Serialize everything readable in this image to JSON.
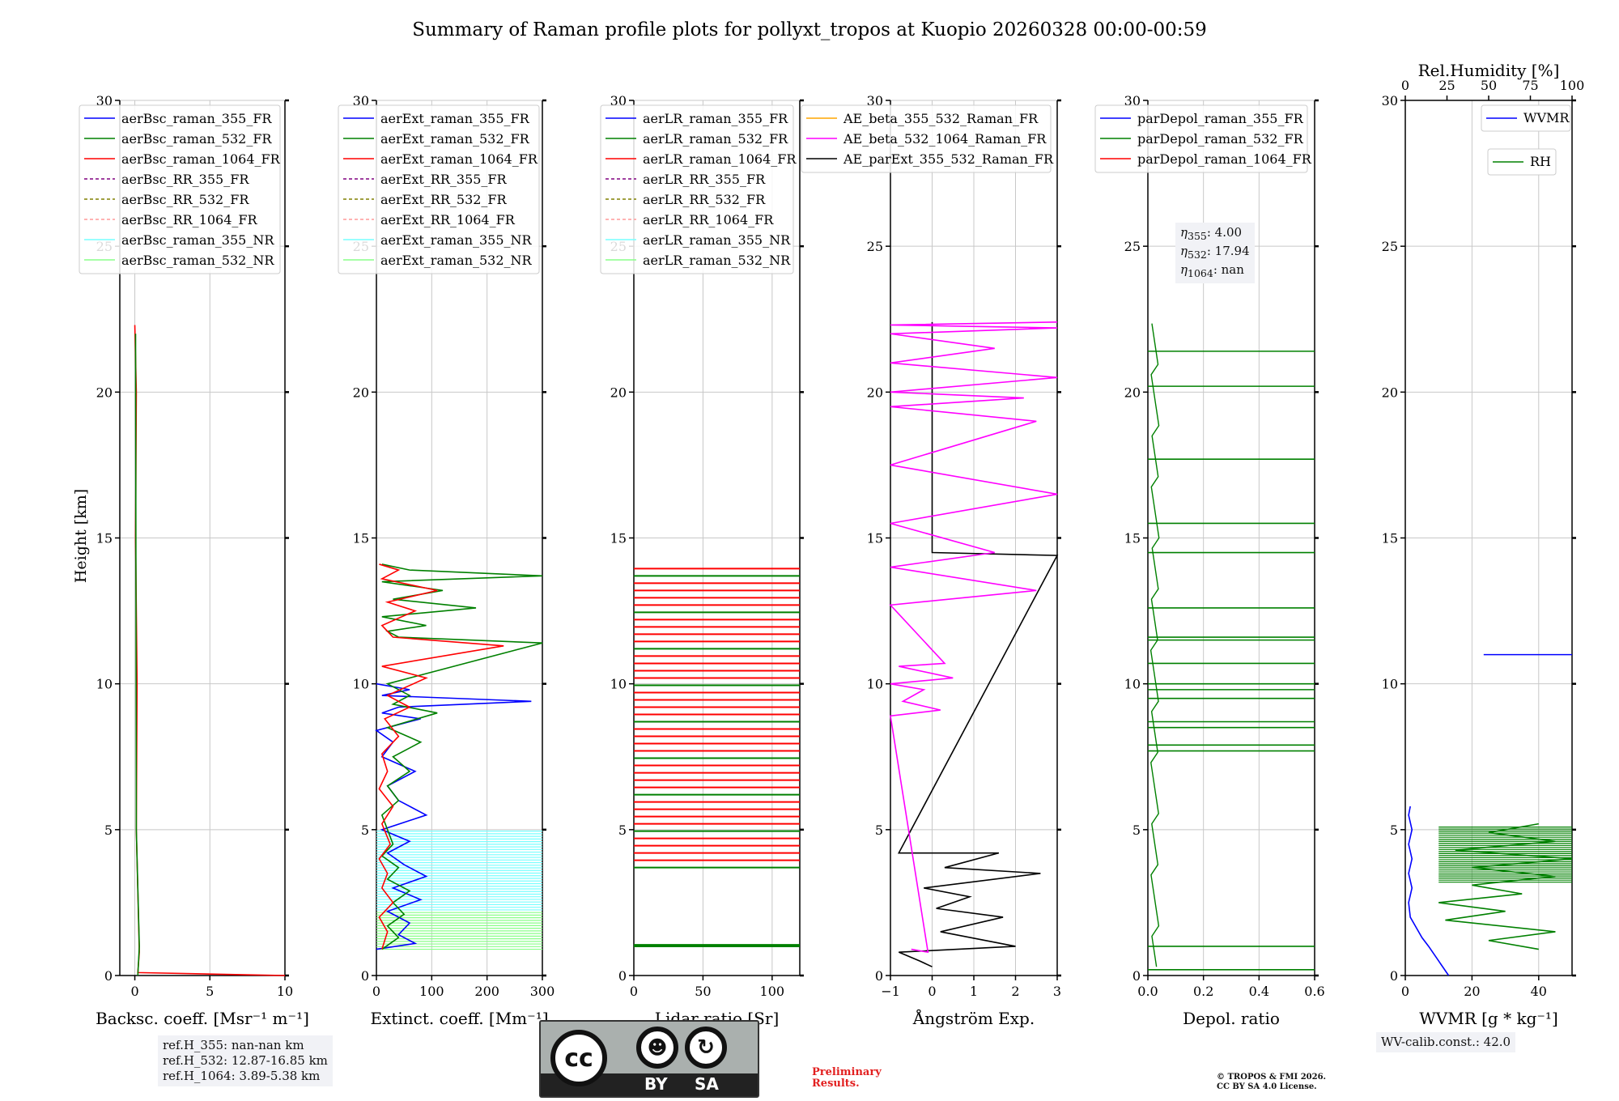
{
  "title": "Summary of Raman profile plots for pollyxt_tropos at Kuopio 20260328 00:00-00:59",
  "ylabel": "Height [km]",
  "colors": {
    "blue": "#0000ff",
    "green": "#008000",
    "red": "#ff0000",
    "purple": "#800080",
    "olive": "#808000",
    "salmon": "#ff9999",
    "cyan": "#77ffff",
    "lightgreen": "#88ff88",
    "orange": "#ffa500",
    "magenta": "#ff00ff",
    "black": "#000000"
  },
  "chart_data": [
    {
      "type": "line",
      "xlabel": "Backsc. coeff. [Msr⁻¹ m⁻¹]",
      "xlim": [
        -1,
        10
      ],
      "xticks": [
        "0",
        "5",
        "10"
      ],
      "ylim": [
        0,
        30
      ],
      "yticks": [
        "0",
        "5",
        "10",
        "15",
        "20",
        "25",
        "30"
      ],
      "legend": [
        "aerBsc_raman_355_FR",
        "aerBsc_raman_532_FR",
        "aerBsc_raman_1064_FR",
        "aerBsc_RR_355_FR",
        "aerBsc_RR_532_FR",
        "aerBsc_RR_1064_FR",
        "aerBsc_raman_355_NR",
        "aerBsc_raman_532_NR"
      ],
      "series": [
        {
          "name": "aerBsc_raman_1064_FR",
          "x": [
            10,
            0.2,
            0.3,
            0.1,
            0.15,
            0.05,
            0.1,
            0
          ],
          "y": [
            0,
            0.1,
            0.8,
            5,
            10,
            15,
            20,
            22.3
          ]
        },
        {
          "name": "aerBsc_raman_532_FR",
          "x": [
            0.2,
            0.3,
            0.1,
            0.05
          ],
          "y": [
            0,
            1,
            5,
            22
          ]
        }
      ]
    },
    {
      "type": "line",
      "xlabel": "Extinct. coeff. [Mm⁻¹]",
      "xlim": [
        0,
        300
      ],
      "xticks": [
        "0",
        "100",
        "200",
        "300"
      ],
      "ylim": [
        0,
        30
      ],
      "yticks": [
        "0",
        "5",
        "10",
        "15",
        "20",
        "25",
        "30"
      ],
      "legend": [
        "aerExt_raman_355_FR",
        "aerExt_raman_532_FR",
        "aerExt_raman_1064_FR",
        "aerExt_RR_355_FR",
        "aerExt_RR_532_FR",
        "aerExt_RR_1064_FR",
        "aerExt_raman_355_NR",
        "aerExt_raman_532_NR"
      ],
      "series": [
        {
          "name": "aerExt_raman_355_FR",
          "x": [
            0,
            70,
            40,
            60,
            20,
            80,
            30,
            90,
            50,
            20,
            60,
            10,
            90,
            40,
            20,
            70,
            10,
            30,
            0,
            80,
            10,
            40,
            280,
            10,
            60,
            0
          ],
          "y": [
            0.9,
            1.1,
            1.4,
            1.8,
            2.2,
            2.6,
            3.0,
            3.4,
            3.8,
            4.2,
            4.6,
            5.0,
            5.5,
            6.0,
            6.5,
            7.0,
            7.5,
            8.0,
            8.4,
            8.8,
            9.0,
            9.2,
            9.4,
            9.6,
            9.8,
            10.0
          ]
        },
        {
          "name": "aerExt_raman_532_FR",
          "x": [
            10,
            40,
            20,
            50,
            30,
            60,
            20,
            40,
            10,
            30,
            10,
            40,
            20,
            60,
            30,
            80,
            20,
            110,
            30,
            60,
            20,
            300,
            40,
            20,
            90,
            10,
            180,
            30,
            120,
            10,
            300,
            60,
            10
          ],
          "y": [
            0.9,
            1.3,
            1.7,
            2.1,
            2.5,
            2.9,
            3.3,
            3.7,
            4.1,
            4.5,
            5.5,
            6.0,
            6.5,
            7.0,
            7.5,
            8.0,
            8.5,
            9.0,
            9.3,
            9.6,
            10.0,
            11.4,
            11.6,
            11.8,
            12.0,
            12.3,
            12.6,
            12.9,
            13.2,
            13.5,
            13.7,
            13.9,
            14.1
          ]
        },
        {
          "name": "aerExt_raman_1064_FR",
          "x": [
            10,
            20,
            5,
            30,
            10,
            20,
            5,
            25,
            10,
            30,
            5,
            20,
            10,
            40,
            15,
            60,
            20,
            90,
            10,
            230,
            30,
            10,
            70,
            20,
            110,
            10,
            40,
            5
          ],
          "y": [
            0.9,
            1.5,
            2.0,
            2.5,
            3.0,
            3.5,
            4.0,
            4.5,
            5.2,
            5.8,
            6.4,
            7.0,
            7.6,
            8.2,
            8.8,
            9.2,
            9.6,
            10.2,
            10.6,
            11.3,
            11.6,
            12.0,
            12.5,
            12.8,
            13.2,
            13.6,
            13.9,
            14.1
          ]
        }
      ]
    },
    {
      "type": "line",
      "xlabel": "Lidar ratio [Sr]",
      "xlim": [
        0,
        120
      ],
      "xticks": [
        "0",
        "50",
        "100"
      ],
      "ylim": [
        0,
        30
      ],
      "yticks": [
        "0",
        "5",
        "10",
        "15",
        "20",
        "25",
        "30"
      ],
      "legend": [
        "aerLR_raman_355_FR",
        "aerLR_raman_532_FR",
        "aerLR_raman_1064_FR",
        "aerLR_RR_355_FR",
        "aerLR_RR_532_FR",
        "aerLR_RR_1064_FR",
        "aerLR_raman_355_NR",
        "aerLR_raman_532_NR"
      ],
      "series": []
    },
    {
      "type": "line",
      "xlabel": "Ångström Exp.",
      "xlim": [
        -1,
        3
      ],
      "xticks": [
        "−1",
        "0",
        "1",
        "2",
        "3"
      ],
      "ylim": [
        0,
        30
      ],
      "yticks": [
        "0",
        "5",
        "10",
        "15",
        "20",
        "25",
        "30"
      ],
      "legend": [
        "AE_beta_355_532_Raman_FR",
        "AE_beta_532_1064_Raman_FR",
        "AE_parExt_355_532_Raman_FR"
      ],
      "series": [
        {
          "name": "AE_parExt_355_532_Raman_FR",
          "x": [
            0,
            -0.3,
            -0.8,
            2,
            0.2,
            1.7,
            0.1,
            0.9,
            -0.2,
            2.6,
            0.3,
            1.6,
            -0.8,
            3,
            0,
            0
          ],
          "y": [
            0.3,
            0.5,
            0.8,
            1,
            1.5,
            2,
            2.3,
            2.7,
            3.0,
            3.5,
            3.7,
            4.2,
            4.2,
            14.4,
            14.5,
            22.4
          ]
        },
        {
          "name": "AE_beta_532_1064_Raman_FR",
          "x": [
            -0.5,
            -0.1,
            -1,
            0.2,
            -0.7,
            -0.2,
            -1,
            0.5,
            -0.8,
            0.3,
            -1,
            2.5,
            -1,
            1.5,
            -1,
            3,
            -1,
            2.5,
            -1,
            2.2,
            -1,
            3,
            -1,
            1.5,
            -1,
            3,
            -1,
            3
          ],
          "y": [
            0.9,
            0.8,
            8.9,
            9.1,
            9.4,
            9.8,
            10.0,
            10.2,
            10.6,
            10.7,
            12.7,
            13.2,
            14.0,
            14.5,
            15.5,
            16.5,
            17.5,
            19.0,
            19.5,
            19.8,
            20.0,
            20.5,
            21.0,
            21.5,
            22.0,
            22.2,
            22.3,
            22.4
          ]
        }
      ]
    },
    {
      "type": "line",
      "xlabel": "Depol. ratio",
      "xlim": [
        0,
        0.6
      ],
      "xticks": [
        "0.0",
        "0.2",
        "0.4",
        "0.6"
      ],
      "ylim": [
        0,
        30
      ],
      "yticks": [
        "0",
        "5",
        "10",
        "15",
        "20",
        "25",
        "30"
      ],
      "legend": [
        "parDepol_raman_355_FR",
        "parDepol_raman_532_FR",
        "parDepol_raman_1064_FR"
      ],
      "series": []
    },
    {
      "type": "line",
      "xlabel": "WVMR [g * kg⁻¹]",
      "xlim": [
        0,
        50
      ],
      "xticks": [
        "0",
        "20",
        "40"
      ],
      "ylim": [
        0,
        30
      ],
      "yticks": [
        "0",
        "5",
        "10",
        "15",
        "20",
        "25",
        "30"
      ],
      "x2label": "Rel.Humidity [%]",
      "x2ticks": [
        "0",
        "25",
        "50",
        "75",
        "100"
      ],
      "legend": [
        "WVMR",
        "RH"
      ],
      "series": [
        {
          "name": "WVMR",
          "x": [
            13,
            10,
            7,
            5,
            3,
            1.5,
            1,
            2,
            1,
            2,
            1,
            2,
            1,
            1.5
          ],
          "y": [
            0,
            0.5,
            1,
            1.3,
            1.7,
            2,
            2.5,
            3,
            3.5,
            4,
            4.5,
            5,
            5.5,
            5.8
          ]
        },
        {
          "name": "RH",
          "x": [
            40,
            25,
            45,
            12,
            30,
            10,
            35,
            20,
            45,
            20,
            50,
            15,
            45,
            25,
            40
          ],
          "y": [
            0.9,
            1.2,
            1.5,
            1.9,
            2.2,
            2.5,
            2.8,
            3.1,
            3.4,
            3.7,
            4.0,
            4.3,
            4.6,
            4.9,
            5.2
          ]
        }
      ]
    }
  ],
  "annotations": {
    "ref_h_355": "ref.H_355: nan-nan km",
    "ref_h_532": "ref.H_532: 12.87-16.85 km",
    "ref_h_1064": "ref.H_1064: 3.89-5.38 km",
    "eta_355_label": "η",
    "eta_355_sub": "355",
    "eta_355_value": ": 4.00",
    "eta_532_label": "η",
    "eta_532_sub": "532",
    "eta_532_value": ": 17.94",
    "eta_1064_label": "η",
    "eta_1064_sub": "1064",
    "eta_1064_value": ": nan",
    "wv_calib": "WV-calib.const.: 42.0",
    "preliminary_line1": "Preliminary",
    "preliminary_line2": "Results.",
    "copyright_line1": "© TROPOS & FMI 2026.",
    "copyright_line2": "CC BY SA 4.0 License."
  },
  "license_logo": {
    "main": "cc",
    "by": "BY",
    "sa": "SA"
  }
}
